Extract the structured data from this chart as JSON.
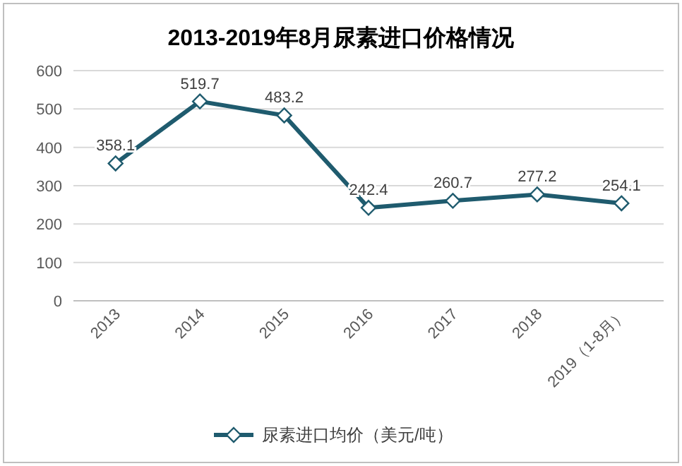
{
  "chart_data": {
    "type": "line",
    "title": "2013-2019年8月尿素进口价格情况",
    "categories": [
      "2013",
      "2014",
      "2015",
      "2016",
      "2017",
      "2018",
      "2019（1-8月）"
    ],
    "series": [
      {
        "name": "尿素进口均价（美元/吨）",
        "color": "#1f5b6e",
        "values": [
          358.1,
          519.7,
          483.2,
          242.4,
          260.7,
          277.2,
          254.1
        ]
      }
    ],
    "ylim": [
      0,
      600
    ],
    "yticks": [
      0,
      100,
      200,
      300,
      400,
      500,
      600
    ],
    "grid": "y",
    "legend": "bottom",
    "marker": "diamond",
    "data_labels": true
  }
}
